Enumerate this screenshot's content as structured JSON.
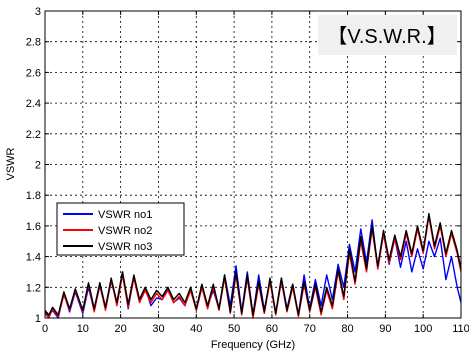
{
  "chart_data": {
    "type": "line",
    "title": "",
    "xlabel": "Frequency (GHz)",
    "ylabel": "VSWR",
    "xlim": [
      0,
      110
    ],
    "ylim": [
      1,
      3
    ],
    "grid": true,
    "legend_position": "left",
    "annotation": "【V.S.W.R.】",
    "xticks": [
      0,
      10,
      20,
      30,
      40,
      50,
      60,
      70,
      80,
      90,
      100,
      110
    ],
    "yticks": [
      1,
      1.2,
      1.4,
      1.6,
      1.8,
      2,
      2.2,
      2.4,
      2.6,
      2.8,
      3
    ],
    "series": [
      {
        "name": "VSWR no1",
        "color": "#0000ff",
        "x": [
          0,
          1,
          2,
          3.5,
          5,
          6.5,
          8,
          10,
          11.5,
          13,
          14.5,
          16,
          17.5,
          19,
          20.5,
          22,
          23.5,
          25,
          26.5,
          28,
          29.5,
          31,
          32.5,
          34,
          35.5,
          37,
          38.5,
          40,
          41.5,
          43,
          44.5,
          46,
          47.5,
          49,
          50.5,
          52,
          53.5,
          55,
          56.5,
          58,
          59.5,
          61,
          62.5,
          64,
          65.5,
          67,
          68.5,
          70,
          71.5,
          73,
          74.5,
          76,
          77.5,
          79,
          80.5,
          82,
          83.5,
          85,
          86.5,
          88,
          89.5,
          91,
          92.5,
          94,
          95.5,
          97,
          98.5,
          100,
          101.5,
          103,
          104.5,
          106,
          107.5,
          109,
          110
        ],
        "y": [
          1.04,
          1.01,
          1.05,
          1.0,
          1.16,
          1.04,
          1.17,
          1.03,
          1.2,
          1.05,
          1.21,
          1.06,
          1.24,
          1.1,
          1.3,
          1.06,
          1.27,
          1.12,
          1.2,
          1.08,
          1.13,
          1.12,
          1.2,
          1.1,
          1.13,
          1.08,
          1.2,
          1.05,
          1.2,
          1.08,
          1.18,
          1.06,
          1.28,
          1.08,
          1.34,
          1.04,
          1.3,
          1.02,
          1.28,
          1.05,
          1.25,
          1.03,
          1.26,
          1.06,
          1.22,
          1.02,
          1.28,
          1.06,
          1.25,
          1.08,
          1.28,
          1.12,
          1.35,
          1.2,
          1.48,
          1.3,
          1.58,
          1.36,
          1.64,
          1.32,
          1.55,
          1.35,
          1.52,
          1.33,
          1.5,
          1.3,
          1.45,
          1.32,
          1.5,
          1.4,
          1.52,
          1.25,
          1.4,
          1.2,
          1.1
        ]
      },
      {
        "name": "VSWR no2",
        "color": "#ff0000",
        "x": [
          0,
          1,
          2,
          3.5,
          5,
          6.5,
          8,
          10,
          11.5,
          13,
          14.5,
          16,
          17.5,
          19,
          20.5,
          22,
          23.5,
          25,
          26.5,
          28,
          29.5,
          31,
          32.5,
          34,
          35.5,
          37,
          38.5,
          40,
          41.5,
          43,
          44.5,
          46,
          47.5,
          49,
          50.5,
          52,
          53.5,
          55,
          56.5,
          58,
          59.5,
          61,
          62.5,
          64,
          65.5,
          67,
          68.5,
          70,
          71.5,
          73,
          74.5,
          76,
          77.5,
          79,
          80.5,
          82,
          83.5,
          85,
          86.5,
          88,
          89.5,
          91,
          92.5,
          94,
          95.5,
          97,
          98.5,
          100,
          101.5,
          103,
          104.5,
          106,
          107.5,
          109,
          110
        ],
        "y": [
          1.03,
          1.0,
          1.06,
          1.01,
          1.15,
          1.05,
          1.18,
          1.04,
          1.22,
          1.04,
          1.22,
          1.05,
          1.25,
          1.08,
          1.28,
          1.07,
          1.26,
          1.1,
          1.18,
          1.1,
          1.16,
          1.12,
          1.18,
          1.1,
          1.14,
          1.08,
          1.18,
          1.05,
          1.2,
          1.06,
          1.2,
          1.05,
          1.26,
          1.03,
          1.28,
          1.02,
          1.26,
          1.0,
          1.22,
          1.03,
          1.24,
          1.02,
          1.24,
          1.04,
          1.2,
          1.01,
          1.22,
          1.04,
          1.2,
          1.02,
          1.18,
          1.06,
          1.3,
          1.12,
          1.42,
          1.22,
          1.5,
          1.3,
          1.58,
          1.32,
          1.55,
          1.36,
          1.52,
          1.38,
          1.55,
          1.4,
          1.58,
          1.42,
          1.66,
          1.45,
          1.6,
          1.4,
          1.55,
          1.42,
          1.3
        ]
      },
      {
        "name": "VSWR no3",
        "color": "#000000",
        "x": [
          0,
          1,
          2,
          3.5,
          5,
          6.5,
          8,
          10,
          11.5,
          13,
          14.5,
          16,
          17.5,
          19,
          20.5,
          22,
          23.5,
          25,
          26.5,
          28,
          29.5,
          31,
          32.5,
          34,
          35.5,
          37,
          38.5,
          40,
          41.5,
          43,
          44.5,
          46,
          47.5,
          49,
          50.5,
          52,
          53.5,
          55,
          56.5,
          58,
          59.5,
          61,
          62.5,
          64,
          65.5,
          67,
          68.5,
          70,
          71.5,
          73,
          74.5,
          76,
          77.5,
          79,
          80.5,
          82,
          83.5,
          85,
          86.5,
          88,
          89.5,
          91,
          92.5,
          94,
          95.5,
          97,
          98.5,
          100,
          101.5,
          103,
          104.5,
          106,
          107.5,
          109,
          110
        ],
        "y": [
          1.05,
          1.02,
          1.07,
          1.02,
          1.17,
          1.06,
          1.19,
          1.05,
          1.23,
          1.06,
          1.23,
          1.07,
          1.26,
          1.1,
          1.3,
          1.09,
          1.28,
          1.12,
          1.2,
          1.12,
          1.18,
          1.14,
          1.2,
          1.12,
          1.16,
          1.1,
          1.2,
          1.06,
          1.22,
          1.08,
          1.22,
          1.06,
          1.28,
          1.04,
          1.3,
          1.03,
          1.28,
          1.02,
          1.24,
          1.04,
          1.26,
          1.03,
          1.26,
          1.05,
          1.22,
          1.02,
          1.24,
          1.05,
          1.22,
          1.04,
          1.2,
          1.08,
          1.32,
          1.14,
          1.45,
          1.24,
          1.53,
          1.32,
          1.6,
          1.34,
          1.57,
          1.38,
          1.54,
          1.4,
          1.57,
          1.42,
          1.6,
          1.44,
          1.68,
          1.47,
          1.62,
          1.42,
          1.57,
          1.44,
          1.32
        ]
      }
    ]
  }
}
